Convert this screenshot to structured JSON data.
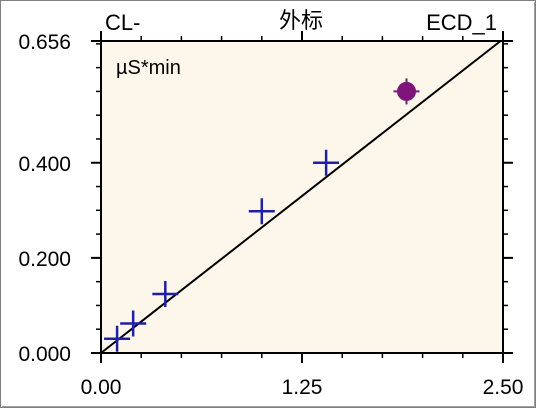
{
  "chart_data": {
    "type": "scatter",
    "header_left": "CL-",
    "header_center": "外标",
    "header_right": "ECD_1",
    "unit_label": "µS*min",
    "xlim": [
      0.0,
      2.5
    ],
    "ylim": [
      0.0,
      0.656
    ],
    "x_ticks": [
      {
        "value": 0.0,
        "label": "0.00"
      },
      {
        "value": 1.25,
        "label": "1.25"
      },
      {
        "value": 2.5,
        "label": "2.50"
      }
    ],
    "y_ticks": [
      {
        "value": 0.0,
        "label": "0.000"
      },
      {
        "value": 0.2,
        "label": "0.200"
      },
      {
        "value": 0.4,
        "label": "0.400"
      },
      {
        "value": 0.656,
        "label": "0.656"
      }
    ],
    "calibration_points": [
      {
        "x": 0.1,
        "y": 0.03
      },
      {
        "x": 0.2,
        "y": 0.062
      },
      {
        "x": 0.4,
        "y": 0.124
      },
      {
        "x": 1.0,
        "y": 0.298
      },
      {
        "x": 1.4,
        "y": 0.4
      }
    ],
    "sample_point": {
      "x": 1.9,
      "y": 0.55
    },
    "fit_line": {
      "x": [
        0.0,
        2.5
      ],
      "y": [
        0.0,
        0.66
      ]
    },
    "gridlines": false,
    "colors": {
      "plot_background": "#fcf7ea",
      "calibration_marker": "#1f1fa8",
      "sample_marker": "#7d157a",
      "fit_line": "#000000"
    }
  }
}
